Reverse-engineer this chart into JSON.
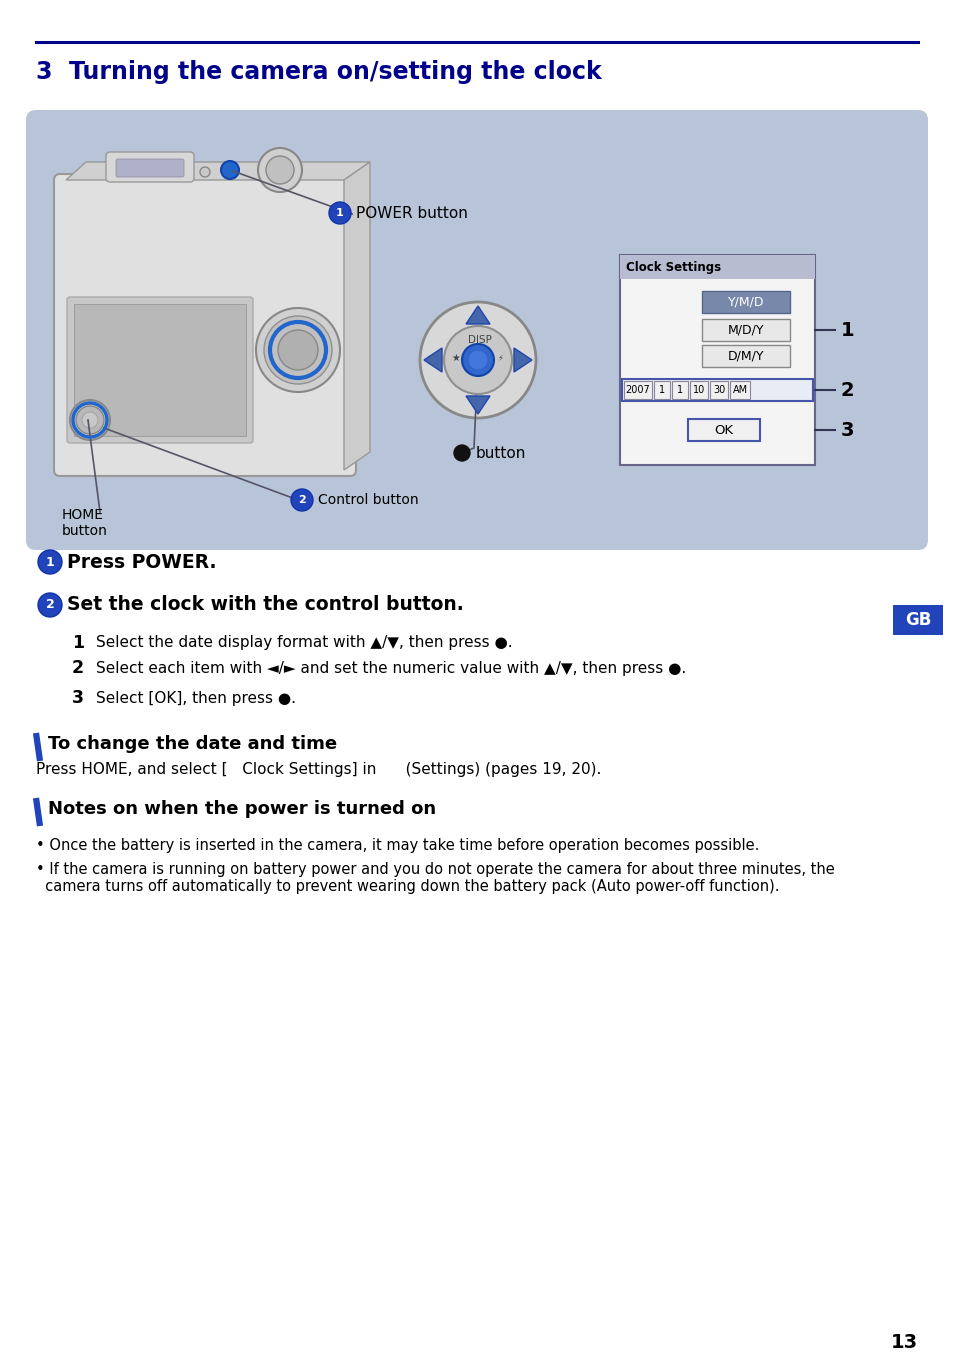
{
  "title": "3  Turning the camera on/setting the clock",
  "title_color": "#00008B",
  "title_fontsize": 17,
  "page_number": "13",
  "bg_color": "#ffffff",
  "box_bg_color": "#b8c4d8",
  "header_line_color": "#00008B",
  "gb_bg_color": "#2244bb",
  "gb_text": "GB",
  "section1_bold": "Press POWER.",
  "section2_bold": "Set the clock with the control button.",
  "step1": "Select the date display format with ▲/▼, then press ●.",
  "step2": "Select each item with ◄/► and set the numeric value with ▲/▼, then press ●.",
  "step3": "Select [OK], then press ●.",
  "subsection1_title": "To change the date and time",
  "subsection1_text": "Press HOME, and select [   Clock Settings] in      (Settings) (pages 19, 20).",
  "subsection2_title": "Notes on when the power is turned on",
  "bullet1": "Once the battery is inserted in the camera, it may take time before operation becomes possible.",
  "bullet2": "If the camera is running on battery power and you do not operate the camera for about three minutes, the\n  camera turns off automatically to prevent wearing down the battery pack (Auto power-off function).",
  "dark_blue": "#00008B",
  "medium_blue": "#2255cc",
  "blue_badge": "#2244bb",
  "arrow_blue": "#4466aa"
}
